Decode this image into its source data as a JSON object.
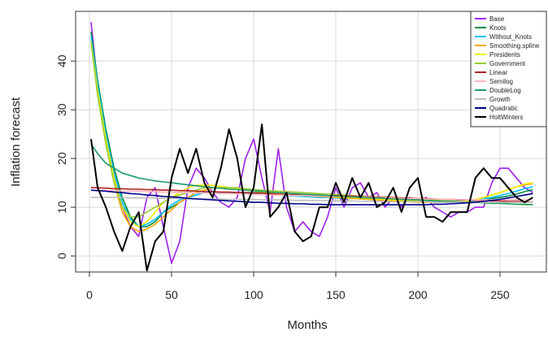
{
  "chart_data": {
    "type": "line",
    "xlabel": "Months",
    "ylabel": "Inflation forecast",
    "xlim": [
      -8.4,
      278.2
    ],
    "ylim": [
      -3.3,
      50.2
    ],
    "xticks": [
      0,
      50,
      100,
      150,
      200,
      250
    ],
    "yticks": [
      0,
      10,
      20,
      30,
      40
    ],
    "grid": true,
    "legend": "top-right",
    "x": [
      1,
      5,
      10,
      15,
      20,
      25,
      30,
      35,
      40,
      45,
      50,
      55,
      60,
      65,
      70,
      75,
      80,
      85,
      90,
      95,
      100,
      105,
      110,
      115,
      120,
      125,
      130,
      135,
      140,
      145,
      150,
      155,
      160,
      165,
      170,
      175,
      180,
      185,
      190,
      195,
      200,
      205,
      210,
      215,
      220,
      225,
      230,
      235,
      240,
      245,
      250,
      255,
      260,
      265,
      270
    ],
    "series": [
      {
        "name": "Base",
        "color": "#a020f0",
        "values": [
          48,
          35,
          25,
          17,
          10,
          6,
          4,
          12,
          14,
          6,
          -1.5,
          3,
          14,
          18,
          16,
          13,
          11,
          10,
          12,
          20,
          24,
          16,
          9,
          22,
          10,
          5,
          7,
          5,
          4,
          8,
          14,
          10,
          14,
          15,
          12,
          13,
          10,
          12,
          10,
          12,
          11,
          12,
          10,
          9,
          8,
          9,
          9,
          10,
          10,
          15,
          18,
          18,
          16,
          14,
          13
        ]
      },
      {
        "name": "Knots",
        "color": "#008b45",
        "values": [
          46,
          36,
          26,
          18,
          12,
          8,
          6,
          6,
          7,
          9,
          10,
          11,
          12,
          12.5,
          13,
          13,
          13,
          13,
          13,
          13,
          13,
          13,
          13,
          12.8,
          12.6,
          12.5,
          12.4,
          12.3,
          12.2,
          12.1,
          12,
          12,
          12,
          11.8,
          11.7,
          11.6,
          11.5,
          11.4,
          11.3,
          11.2,
          11.1,
          11,
          11,
          11,
          11,
          11,
          11.2,
          11.4,
          11.6,
          11.8,
          12,
          12.3,
          12.7,
          13.2,
          13.6
        ]
      },
      {
        "name": "Without_Knots",
        "color": "#00bfff",
        "values": [
          45,
          35,
          25,
          17,
          11,
          7.5,
          6,
          6.5,
          7.5,
          9,
          10.5,
          11.5,
          12,
          12.5,
          13,
          13,
          13,
          13,
          13,
          12.9,
          12.8,
          12.7,
          12.6,
          12.5,
          12.4,
          12.3,
          12.2,
          12.1,
          12,
          12,
          11.9,
          11.8,
          11.8,
          11.7,
          11.6,
          11.5,
          11.4,
          11.3,
          11.2,
          11.2,
          11.1,
          11,
          11,
          11,
          11,
          11.1,
          11.2,
          11.4,
          11.7,
          12,
          12.4,
          12.8,
          13.3,
          13.8,
          14.2
        ]
      },
      {
        "name": "Smoothing.spline",
        "color": "#ffa500",
        "values": [
          44,
          33,
          23,
          15,
          9,
          6,
          5,
          5.5,
          6.5,
          8,
          9.5,
          11,
          12,
          13,
          13.5,
          14,
          14,
          14,
          13.8,
          13.6,
          13.4,
          13.2,
          13,
          12.8,
          12.6,
          12.5,
          12.4,
          12.3,
          12.2,
          12.1,
          12,
          11.9,
          11.8,
          11.7,
          11.6,
          11.5,
          11.4,
          11.3,
          11.2,
          11.1,
          11,
          11,
          11,
          11,
          11,
          11.1,
          11.3,
          11.6,
          12,
          12.5,
          13,
          13.6,
          14.2,
          14.6,
          14.8
        ]
      },
      {
        "name": "Presidents",
        "color": "#f0f000",
        "values": [
          44,
          34,
          24,
          16,
          10,
          7,
          6,
          7,
          9,
          11,
          12,
          13,
          14,
          14.5,
          14.5,
          14.5,
          14.3,
          14,
          13.8,
          13.6,
          13.4,
          13.2,
          13,
          12.9,
          12.8,
          12.7,
          12.6,
          12.5,
          12.4,
          12.3,
          12.2,
          12.1,
          12,
          11.9,
          11.8,
          11.7,
          11.6,
          11.5,
          11.4,
          11.3,
          11.2,
          11.1,
          11,
          11,
          11,
          11.1,
          11.3,
          11.6,
          12,
          12.5,
          13,
          13.6,
          14.2,
          14.8,
          15
        ]
      },
      {
        "name": "Government",
        "color": "#9acd32",
        "values": [
          44,
          33,
          23,
          15,
          10,
          8,
          8,
          9,
          10,
          11,
          12,
          12.5,
          13,
          13.5,
          14,
          14,
          14,
          14,
          14,
          13.8,
          13.6,
          13.5,
          13.4,
          13.3,
          13.2,
          13.1,
          13,
          12.9,
          12.8,
          12.7,
          12.6,
          12.5,
          12.4,
          12.3,
          12.2,
          12.1,
          12,
          12,
          11.9,
          11.8,
          11.7,
          11.6,
          11.5,
          11.4,
          11.3,
          11.2,
          11.1,
          11,
          11,
          10.9,
          10.8,
          10.7,
          10.6,
          10.5,
          10.5
        ]
      },
      {
        "name": "Linear",
        "color": "#b22222",
        "values": [
          14.0,
          14.0,
          13.9,
          13.8,
          13.8,
          13.7,
          13.7,
          13.6,
          13.6,
          13.5,
          13.5,
          13.4,
          13.4,
          13.3,
          13.2,
          13.2,
          13.1,
          13.1,
          13.0,
          13.0,
          12.9,
          12.9,
          12.8,
          12.7,
          12.7,
          12.6,
          12.6,
          12.5,
          12.5,
          12.4,
          12.4,
          12.3,
          12.3,
          12.2,
          12.1,
          12.1,
          12.0,
          12.0,
          11.9,
          11.9,
          11.8,
          11.8,
          11.7,
          11.6,
          11.6,
          11.5,
          11.5,
          11.4,
          11.4,
          11.3,
          11.3,
          11.2,
          11.2,
          11.1,
          11.0
        ]
      },
      {
        "name": "Semilog",
        "color": "#ffb6c1",
        "values": [
          13.5,
          13.5,
          13.4,
          13.4,
          13.3,
          13.3,
          13.3,
          13.2,
          13.2,
          13.1,
          13.1,
          13.0,
          13.0,
          12.9,
          12.9,
          12.9,
          12.8,
          12.8,
          12.7,
          12.7,
          12.6,
          12.6,
          12.5,
          12.5,
          12.5,
          12.4,
          12.4,
          12.3,
          12.3,
          12.2,
          12.2,
          12.2,
          12.1,
          12.1,
          12.0,
          12.0,
          11.9,
          11.9,
          11.8,
          11.8,
          11.8,
          11.7,
          11.7,
          11.6,
          11.6,
          11.6,
          11.5,
          11.5,
          11.5,
          11.5,
          11.5,
          11.5,
          11.5,
          11.5,
          11.5
        ]
      },
      {
        "name": "DoubleLog",
        "color": "#1e9a6a",
        "values": [
          23,
          21,
          19,
          18,
          17,
          16.5,
          16,
          15.7,
          15.4,
          15.2,
          15,
          14.8,
          14.6,
          14.4,
          14.2,
          14,
          13.9,
          13.7,
          13.6,
          13.5,
          13.4,
          13.3,
          13.1,
          13,
          12.9,
          12.8,
          12.7,
          12.6,
          12.5,
          12.4,
          12.3,
          12.2,
          12.1,
          12,
          11.9,
          11.9,
          11.8,
          11.7,
          11.6,
          11.5,
          11.5,
          11.4,
          11.3,
          11.2,
          11.2,
          11.1,
          11,
          11,
          10.9,
          10.8,
          10.8,
          10.7,
          10.6,
          10.6,
          10.5
        ]
      },
      {
        "name": "Growth",
        "color": "#bebebe",
        "values": [
          12,
          12,
          12,
          12,
          12,
          11.9,
          11.9,
          11.9,
          11.9,
          11.8,
          11.8,
          11.8,
          11.8,
          11.7,
          11.7,
          11.7,
          11.7,
          11.6,
          11.6,
          11.6,
          11.6,
          11.5,
          11.5,
          11.5,
          11.5,
          11.4,
          11.4,
          11.4,
          11.4,
          11.3,
          11.3,
          11.3,
          11.3,
          11.2,
          11.2,
          11.2,
          11.2,
          11.1,
          11.1,
          11.1,
          11.1,
          11.1,
          11.0,
          11.0,
          11,
          11,
          11,
          11,
          11,
          11,
          11,
          11,
          11,
          11,
          11
        ]
      },
      {
        "name": "Quadratic",
        "color": "#00008b",
        "values": [
          13.5,
          13.4,
          13.3,
          13.1,
          13,
          12.8,
          12.7,
          12.5,
          12.4,
          12.2,
          12.1,
          12,
          11.8,
          11.7,
          11.6,
          11.5,
          11.4,
          11.3,
          11.2,
          11.1,
          11,
          11,
          10.9,
          10.8,
          10.8,
          10.7,
          10.7,
          10.6,
          10.6,
          10.5,
          10.5,
          10.5,
          10.5,
          10.5,
          10.5,
          10.5,
          10.5,
          10.5,
          10.5,
          10.5,
          10.5,
          10.5,
          10.6,
          10.6,
          10.7,
          10.8,
          10.9,
          11,
          11.2,
          11.4,
          11.6,
          11.9,
          12.2,
          12.5,
          12.8
        ]
      },
      {
        "name": "HoltWinters",
        "color": "#000000",
        "values": [
          24,
          14,
          10,
          5,
          1,
          6,
          9,
          -3,
          3,
          5,
          16,
          22,
          17,
          22,
          15,
          12,
          18,
          26,
          20,
          10,
          14,
          27,
          8,
          10,
          13,
          5,
          3,
          4,
          10,
          10,
          15,
          11,
          16,
          12,
          15,
          10,
          11,
          14,
          9,
          14,
          16,
          8,
          8,
          7,
          9,
          9,
          9,
          16,
          18,
          16,
          16,
          14,
          12,
          11,
          12
        ]
      }
    ]
  }
}
